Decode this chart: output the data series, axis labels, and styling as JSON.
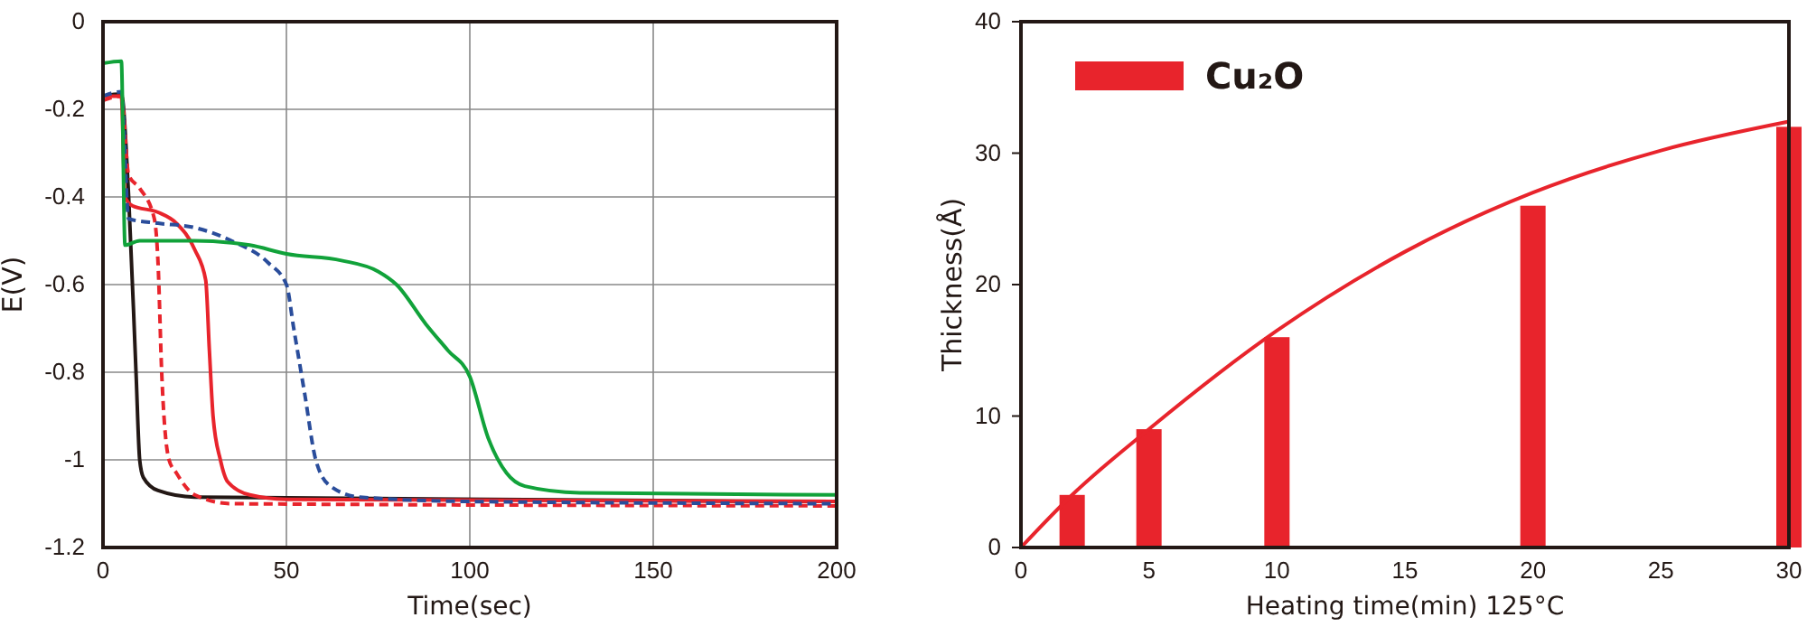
{
  "chart_data": [
    {
      "type": "line",
      "xlabel": "Time(sec)",
      "ylabel": "E(V)",
      "xlim": [
        0,
        200
      ],
      "ylim": [
        -1.2,
        0
      ],
      "xticks": [
        0,
        50,
        100,
        150,
        200
      ],
      "yticks": [
        -1.2,
        -1,
        -0.8,
        -0.6,
        -0.4,
        -0.2,
        0
      ],
      "grid": true,
      "series": [
        {
          "color": "#231815",
          "line_style": "solid",
          "x": [
            0,
            5,
            7,
            9,
            10,
            11,
            15,
            25,
            200
          ],
          "values": [
            -0.17,
            -0.165,
            -0.4,
            -0.8,
            -1.0,
            -1.04,
            -1.07,
            -1.085,
            -1.095
          ]
        },
        {
          "color": "#e8242c",
          "line_style": "dashed",
          "x": [
            0,
            5,
            7,
            10,
            14,
            15,
            16,
            18,
            20,
            25,
            35,
            200
          ],
          "values": [
            -0.18,
            -0.17,
            -0.35,
            -0.38,
            -0.45,
            -0.55,
            -0.8,
            -1.0,
            -1.03,
            -1.08,
            -1.1,
            -1.105
          ]
        },
        {
          "color": "#e8242c",
          "line_style": "solid",
          "x": [
            0,
            5,
            6,
            8,
            15,
            20,
            25,
            28,
            29,
            30,
            32,
            34,
            40,
            50,
            200
          ],
          "values": [
            -0.17,
            -0.17,
            -0.4,
            -0.42,
            -0.435,
            -0.46,
            -0.52,
            -0.59,
            -0.75,
            -0.9,
            -1.0,
            -1.05,
            -1.08,
            -1.09,
            -1.095
          ]
        },
        {
          "color": "#2a4d9b",
          "line_style": "dashed",
          "x": [
            0,
            5,
            7,
            15,
            25,
            35,
            45,
            50,
            52,
            55,
            58,
            62,
            70,
            100,
            200
          ],
          "values": [
            -0.17,
            -0.16,
            -0.45,
            -0.46,
            -0.47,
            -0.5,
            -0.55,
            -0.6,
            -0.7,
            -0.85,
            -1.0,
            -1.06,
            -1.085,
            -1.095,
            -1.1
          ]
        },
        {
          "color": "#11a23a",
          "line_style": "solid",
          "x": [
            0,
            5,
            6,
            10,
            25,
            40,
            50,
            65,
            75,
            80,
            88,
            94,
            100,
            105,
            110,
            115,
            130,
            200
          ],
          "values": [
            -0.095,
            -0.09,
            -0.51,
            -0.5,
            -0.5,
            -0.51,
            -0.53,
            -0.545,
            -0.57,
            -0.6,
            -0.69,
            -0.75,
            -0.81,
            -0.95,
            -1.03,
            -1.06,
            -1.075,
            -1.08
          ]
        }
      ]
    },
    {
      "type": "bar",
      "xlabel": "Heating time(min) 125°C",
      "ylabel": "Thickness(Å)",
      "xlim": [
        0,
        30
      ],
      "ylim": [
        0,
        40
      ],
      "xticks": [
        0,
        5,
        10,
        15,
        20,
        25,
        30
      ],
      "yticks": [
        0,
        10,
        20,
        30,
        40
      ],
      "legend": "top left",
      "series": [
        {
          "name": "Cu₂O",
          "color": "#e8242c",
          "x": [
            2,
            5,
            10,
            20,
            30
          ],
          "values": [
            4,
            9,
            16,
            26,
            32
          ]
        },
        {
          "type": "line",
          "color": "#e8242c",
          "x": [
            0,
            2,
            5,
            10,
            15,
            20,
            25,
            30
          ],
          "values": [
            0,
            4,
            9,
            16.5,
            22.5,
            27,
            30.2,
            32.4
          ]
        }
      ]
    }
  ]
}
